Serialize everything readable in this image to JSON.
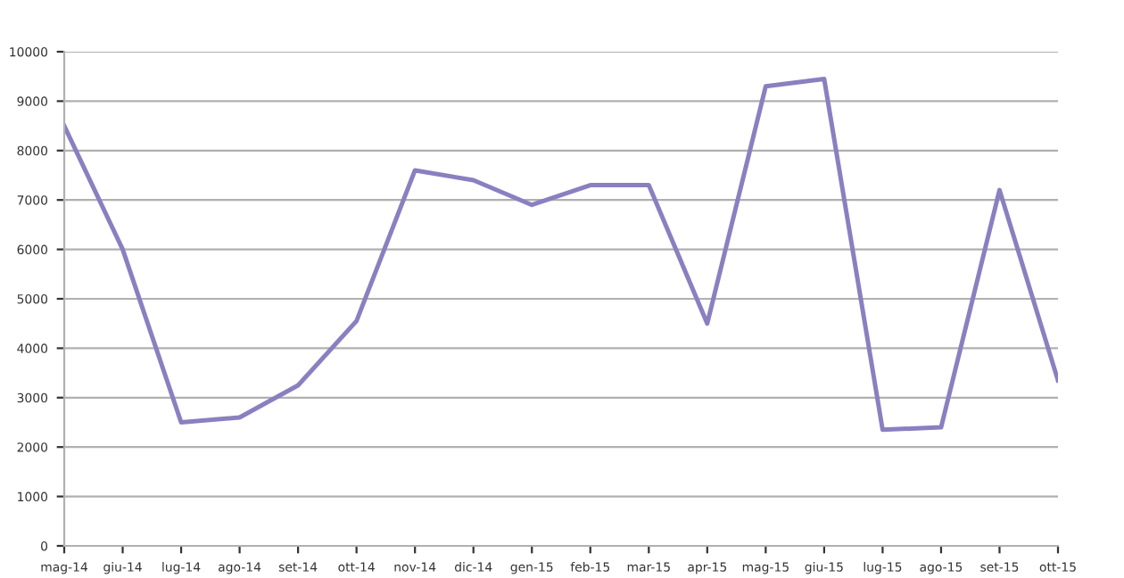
{
  "chart_data": {
    "type": "line",
    "categories": [
      "mag-14",
      "giu-14",
      "lug-14",
      "ago-14",
      "set-14",
      "ott-14",
      "nov-14",
      "dic-14",
      "gen-15",
      "feb-15",
      "mar-15",
      "apr-15",
      "mag-15",
      "giu-15",
      "lug-15",
      "ago-15",
      "set-15",
      "ott-15"
    ],
    "series": [
      {
        "color": "#8a80c0",
        "values": [
          8500,
          6000,
          2500,
          2600,
          3250,
          4550,
          7600,
          7400,
          6900,
          7300,
          7300,
          4500,
          9300,
          9450,
          2350,
          2400,
          7200,
          3350
        ]
      }
    ],
    "ylim": [
      0,
      10000
    ],
    "yticks": [
      0,
      1000,
      2000,
      3000,
      4000,
      5000,
      6000,
      7000,
      8000,
      9000,
      10000
    ],
    "grid": "y",
    "legend": false,
    "marker": "none",
    "line_style": "solid"
  }
}
